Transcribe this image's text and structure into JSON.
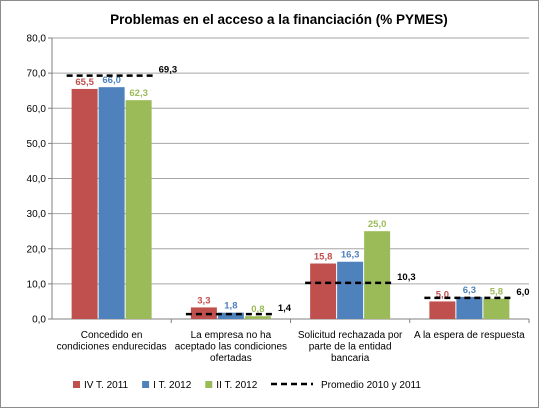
{
  "chart_data": {
    "type": "bar",
    "title": "Problemas en el acceso a la financiación (% PYMES)",
    "categories": [
      [
        "Concedido en",
        "condiciones endurecidas"
      ],
      [
        "La empresa no ha",
        "aceptado las condiciones",
        "ofertadas"
      ],
      [
        "Solicitud rechazada por",
        "parte de la entidad",
        "bancaria"
      ],
      [
        "A la espera de respuesta"
      ]
    ],
    "series": [
      {
        "name": "IV T. 2011",
        "color": "#c0504d",
        "values": [
          65.5,
          3.3,
          15.8,
          5.0
        ],
        "labels": [
          "65,5",
          "3,3",
          "15,8",
          "5,0"
        ]
      },
      {
        "name": "I T. 2012",
        "color": "#4f81bd",
        "values": [
          66.0,
          1.8,
          16.3,
          6.3
        ],
        "labels": [
          "66,0",
          "1,8",
          "16,3",
          "6,3"
        ]
      },
      {
        "name": "II T. 2012",
        "color": "#9bbb59",
        "values": [
          62.3,
          0.8,
          25.0,
          5.8
        ],
        "labels": [
          "62,3",
          "0,8",
          "25,0",
          "5,8"
        ]
      }
    ],
    "reference": {
      "name": "Promedio 2010 y 2011",
      "values": [
        69.3,
        1.4,
        10.3,
        6.0
      ],
      "labels": [
        "69,3",
        "1,4",
        "10,3",
        "6,0"
      ],
      "style": "dashed",
      "color": "#000000"
    },
    "ylim": [
      0,
      80
    ],
    "yticks": [
      0,
      10,
      20,
      30,
      40,
      50,
      60,
      70,
      80
    ],
    "ytick_labels": [
      "0,0",
      "10,0",
      "20,0",
      "30,0",
      "40,0",
      "50,0",
      "60,0",
      "70,0",
      "80,0"
    ],
    "grid": true,
    "legend_position": "bottom"
  }
}
